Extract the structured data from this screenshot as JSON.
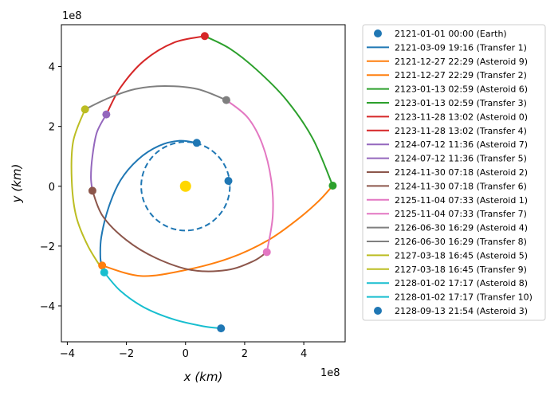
{
  "chart_data": {
    "type": "line",
    "xlabel": "x (km)",
    "ylabel": "y (km)",
    "x_offset_label": "1e8",
    "y_offset_label": "1e8",
    "xlim": [
      -4.2,
      5.4
    ],
    "ylim": [
      -5.2,
      5.4
    ],
    "xticks": [
      -4,
      -2,
      0,
      2,
      4
    ],
    "yticks": [
      -4,
      -2,
      0,
      2,
      4
    ],
    "xtick_labels": [
      "−4",
      "−2",
      "0",
      "2",
      "4"
    ],
    "ytick_labels": [
      "−4",
      "−2",
      "0",
      "2",
      "4"
    ],
    "grid": false,
    "legend_position": "outside-right",
    "sun": {
      "x": 0,
      "y": 0,
      "color": "#ffd700"
    },
    "earth_orbit": {
      "radius": 1.5,
      "color": "#1f77b4",
      "style": "dashed"
    },
    "legend": [
      {
        "label": "2121-01-01 00:00 (Earth)",
        "color": "#1f77b4",
        "kind": "marker"
      },
      {
        "label": "2121-03-09 19:16 (Transfer 1)",
        "color": "#1f77b4",
        "kind": "line"
      },
      {
        "label": "2121-12-27 22:29 (Asteroid 9)",
        "color": "#ff7f0e",
        "kind": "line"
      },
      {
        "label": "2121-12-27 22:29 (Transfer 2)",
        "color": "#ff7f0e",
        "kind": "line"
      },
      {
        "label": "2123-01-13 02:59 (Asteroid 6)",
        "color": "#2ca02c",
        "kind": "line"
      },
      {
        "label": "2123-01-13 02:59 (Transfer 3)",
        "color": "#2ca02c",
        "kind": "line"
      },
      {
        "label": "2123-11-28 13:02 (Asteroid 0)",
        "color": "#d62728",
        "kind": "line"
      },
      {
        "label": "2123-11-28 13:02 (Transfer 4)",
        "color": "#d62728",
        "kind": "line"
      },
      {
        "label": "2124-07-12 11:36 (Asteroid 7)",
        "color": "#9467bd",
        "kind": "line"
      },
      {
        "label": "2124-07-12 11:36 (Transfer 5)",
        "color": "#9467bd",
        "kind": "line"
      },
      {
        "label": "2124-11-30 07:18 (Asteroid 2)",
        "color": "#8c564b",
        "kind": "line"
      },
      {
        "label": "2124-11-30 07:18 (Transfer 6)",
        "color": "#8c564b",
        "kind": "line"
      },
      {
        "label": "2125-11-04 07:33 (Asteroid 1)",
        "color": "#e377c2",
        "kind": "line"
      },
      {
        "label": "2125-11-04 07:33 (Transfer 7)",
        "color": "#e377c2",
        "kind": "line"
      },
      {
        "label": "2126-06-30 16:29 (Asteroid 4)",
        "color": "#7f7f7f",
        "kind": "line"
      },
      {
        "label": "2126-06-30 16:29 (Transfer 8)",
        "color": "#7f7f7f",
        "kind": "line"
      },
      {
        "label": "2127-03-18 16:45 (Asteroid 5)",
        "color": "#bcbd22",
        "kind": "line"
      },
      {
        "label": "2127-03-18 16:45 (Transfer 9)",
        "color": "#bcbd22",
        "kind": "line"
      },
      {
        "label": "2128-01-02 17:17 (Asteroid 8)",
        "color": "#17becf",
        "kind": "line"
      },
      {
        "label": "2128-01-02 17:17 (Transfer 10)",
        "color": "#17becf",
        "kind": "line"
      },
      {
        "label": "2128-09-13 21:54 (Asteroid 3)",
        "color": "#1f77b4",
        "kind": "marker"
      }
    ],
    "points": [
      {
        "name": "Earth",
        "x": 1.45,
        "y": 0.18,
        "color": "#1f77b4"
      },
      {
        "name": "Transfer 1 end",
        "x": 0.38,
        "y": 1.45,
        "color": "#1f77b4"
      },
      {
        "name": "Asteroid 9",
        "x": -2.82,
        "y": -2.65,
        "color": "#ff7f0e"
      },
      {
        "name": "Asteroid 6",
        "x": 4.98,
        "y": 0.02,
        "color": "#2ca02c"
      },
      {
        "name": "Asteroid 0",
        "x": 0.65,
        "y": 5.02,
        "color": "#d62728"
      },
      {
        "name": "Asteroid 7",
        "x": -2.68,
        "y": 2.4,
        "color": "#9467bd"
      },
      {
        "name": "Asteroid 2",
        "x": -3.15,
        "y": -0.15,
        "color": "#8c564b"
      },
      {
        "name": "Asteroid 1",
        "x": 2.75,
        "y": -2.2,
        "color": "#e377c2"
      },
      {
        "name": "Asteroid 4",
        "x": 1.38,
        "y": 2.88,
        "color": "#7f7f7f"
      },
      {
        "name": "Asteroid 5",
        "x": -3.4,
        "y": 2.57,
        "color": "#bcbd22"
      },
      {
        "name": "Asteroid 8",
        "x": -2.75,
        "y": -2.88,
        "color": "#17becf"
      },
      {
        "name": "Asteroid 3",
        "x": 1.2,
        "y": -4.75,
        "color": "#1f77b4"
      }
    ],
    "series": [
      {
        "name": "Transfer 1",
        "color": "#1f77b4",
        "points": [
          [
            0.38,
            1.45
          ],
          [
            -0.2,
            1.52
          ],
          [
            -0.9,
            1.35
          ],
          [
            -1.6,
            0.9
          ],
          [
            -2.2,
            0.2
          ],
          [
            -2.6,
            -0.7
          ],
          [
            -2.85,
            -1.7
          ],
          [
            -2.88,
            -2.4
          ],
          [
            -2.82,
            -2.65
          ]
        ]
      },
      {
        "name": "Transfer 2",
        "color": "#ff7f0e",
        "points": [
          [
            -2.82,
            -2.65
          ],
          [
            -1.5,
            -3.0
          ],
          [
            0.0,
            -2.8
          ],
          [
            1.5,
            -2.4
          ],
          [
            2.8,
            -1.8
          ],
          [
            3.8,
            -1.1
          ],
          [
            4.5,
            -0.5
          ],
          [
            4.98,
            0.02
          ]
        ]
      },
      {
        "name": "Transfer 3",
        "color": "#2ca02c",
        "points": [
          [
            4.98,
            0.02
          ],
          [
            4.3,
            1.6
          ],
          [
            3.4,
            2.9
          ],
          [
            2.4,
            3.9
          ],
          [
            1.5,
            4.6
          ],
          [
            0.65,
            5.02
          ]
        ]
      },
      {
        "name": "Transfer 4",
        "color": "#d62728",
        "points": [
          [
            0.65,
            5.02
          ],
          [
            -0.4,
            4.8
          ],
          [
            -1.4,
            4.2
          ],
          [
            -2.2,
            3.3
          ],
          [
            -2.68,
            2.4
          ]
        ]
      },
      {
        "name": "Transfer 5",
        "color": "#9467bd",
        "points": [
          [
            -2.68,
            2.4
          ],
          [
            -3.0,
            1.8
          ],
          [
            -3.15,
            1.0
          ],
          [
            -3.2,
            0.3
          ],
          [
            -3.15,
            -0.15
          ]
        ]
      },
      {
        "name": "Transfer 6",
        "color": "#8c564b",
        "points": [
          [
            -3.15,
            -0.15
          ],
          [
            -2.8,
            -1.0
          ],
          [
            -2.0,
            -1.8
          ],
          [
            -1.0,
            -2.4
          ],
          [
            0.2,
            -2.8
          ],
          [
            1.4,
            -2.8
          ],
          [
            2.3,
            -2.5
          ],
          [
            2.75,
            -2.2
          ]
        ]
      },
      {
        "name": "Transfer 7",
        "color": "#e377c2",
        "points": [
          [
            2.75,
            -2.2
          ],
          [
            2.95,
            -1.0
          ],
          [
            2.9,
            0.2
          ],
          [
            2.6,
            1.4
          ],
          [
            2.1,
            2.3
          ],
          [
            1.38,
            2.88
          ]
        ]
      },
      {
        "name": "Transfer 8",
        "color": "#7f7f7f",
        "points": [
          [
            1.38,
            2.88
          ],
          [
            0.4,
            3.25
          ],
          [
            -0.7,
            3.35
          ],
          [
            -1.7,
            3.25
          ],
          [
            -2.6,
            2.95
          ],
          [
            -3.4,
            2.57
          ]
        ]
      },
      {
        "name": "Transfer 9",
        "color": "#bcbd22",
        "points": [
          [
            -3.4,
            2.57
          ],
          [
            -3.8,
            1.5
          ],
          [
            -3.85,
            0.2
          ],
          [
            -3.7,
            -1.0
          ],
          [
            -3.3,
            -2.0
          ],
          [
            -2.75,
            -2.88
          ]
        ]
      },
      {
        "name": "Transfer 10",
        "color": "#17becf",
        "points": [
          [
            -2.75,
            -2.88
          ],
          [
            -2.2,
            -3.5
          ],
          [
            -1.4,
            -4.05
          ],
          [
            -0.4,
            -4.45
          ],
          [
            0.6,
            -4.68
          ],
          [
            1.2,
            -4.75
          ]
        ]
      }
    ]
  }
}
